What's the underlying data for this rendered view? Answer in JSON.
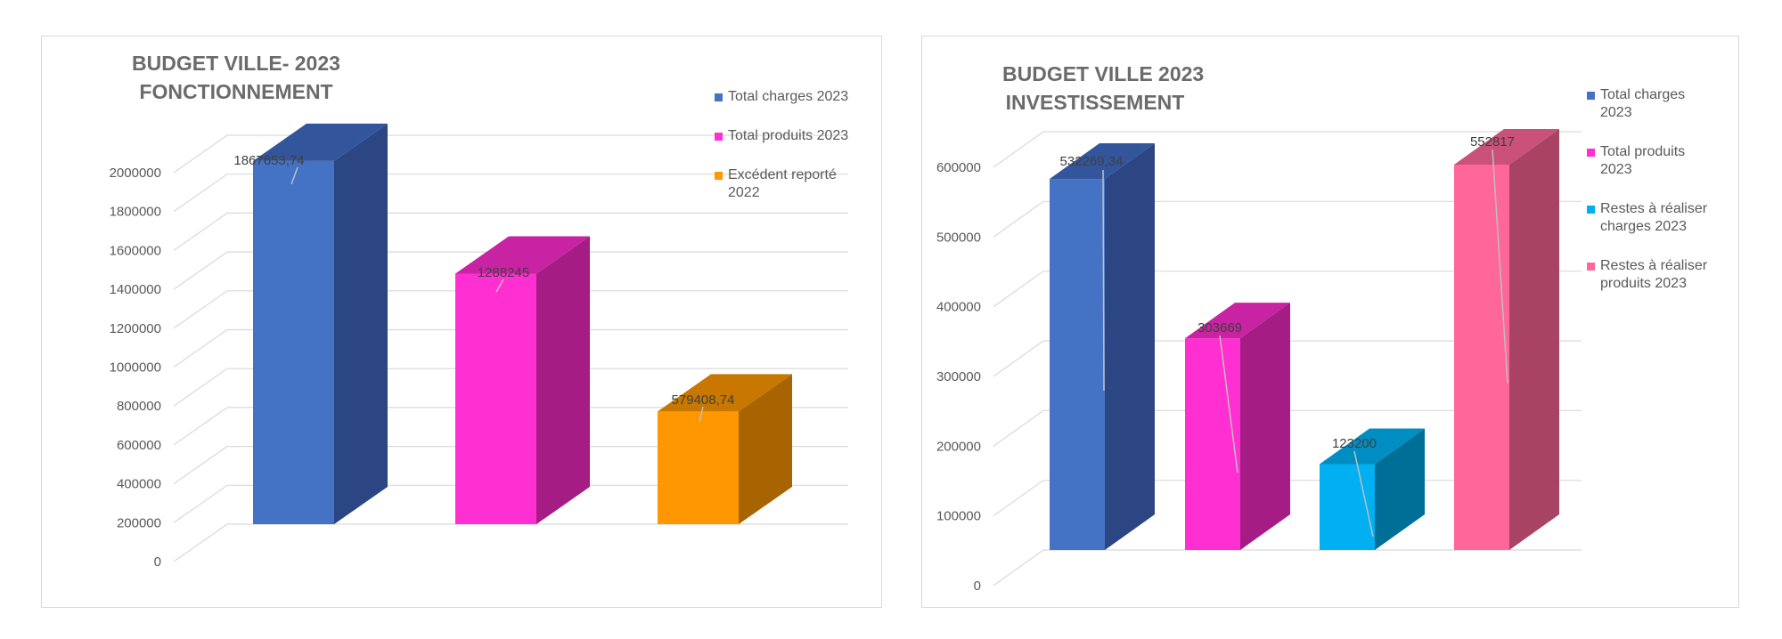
{
  "chart_data": [
    {
      "type": "bar",
      "title_lines": [
        "BUDGET VILLE- 2023",
        "FONCTIONNEMENT"
      ],
      "categories": [
        "Total charges 2023",
        "Total produits 2023",
        "Excédent reporté 2022"
      ],
      "values": [
        1867653.74,
        1288245,
        579408.74
      ],
      "data_labels": [
        "1867653,74",
        "1288245",
        "579408,74"
      ],
      "legend": [
        "Total charges 2023",
        "Total produits 2023",
        "Excédent reporté 2022"
      ],
      "colors": [
        {
          "front": "#4472c4",
          "side": "#2b4682",
          "top": "#32559c"
        },
        {
          "front": "#ff2fd1",
          "side": "#a51c85",
          "top": "#c823a2"
        },
        {
          "front": "#ff9800",
          "side": "#a86400",
          "top": "#c87800"
        }
      ],
      "ylim": [
        0,
        2000000
      ],
      "yticks": [
        "0",
        "200000",
        "400000",
        "600000",
        "800000",
        "1000000",
        "1200000",
        "1400000",
        "1600000",
        "1800000",
        "2000000"
      ],
      "grid": true,
      "legend_position": "top-right"
    },
    {
      "type": "bar",
      "title_lines": [
        "BUDGET VILLE 2023",
        "INVESTISSEMENT"
      ],
      "categories": [
        "Total charges 2023",
        "Total produits 2023",
        "Restes à réaliser charges 2023",
        "Restes à réaliser produits 2023"
      ],
      "values": [
        532269.34,
        303669,
        123200,
        552817
      ],
      "data_labels": [
        "532269,34",
        "303669",
        "123200",
        "552817"
      ],
      "legend": [
        "Total charges 2023",
        "Total produits 2023",
        "Restes à réaliser charges 2023",
        "Restes à réaliser produits 2023"
      ],
      "colors": [
        {
          "front": "#4472c4",
          "side": "#2b4682",
          "top": "#32559c"
        },
        {
          "front": "#ff2fd1",
          "side": "#a51c85",
          "top": "#c823a2"
        },
        {
          "front": "#00b0f0",
          "side": "#006f98",
          "top": "#008ec2"
        },
        {
          "front": "#ff6699",
          "side": "#a84363",
          "top": "#c9517a"
        }
      ],
      "ylim": [
        0,
        600000
      ],
      "yticks": [
        "0",
        "100000",
        "200000",
        "300000",
        "400000",
        "500000",
        "600000"
      ],
      "grid": true,
      "legend_position": "top-right"
    }
  ]
}
